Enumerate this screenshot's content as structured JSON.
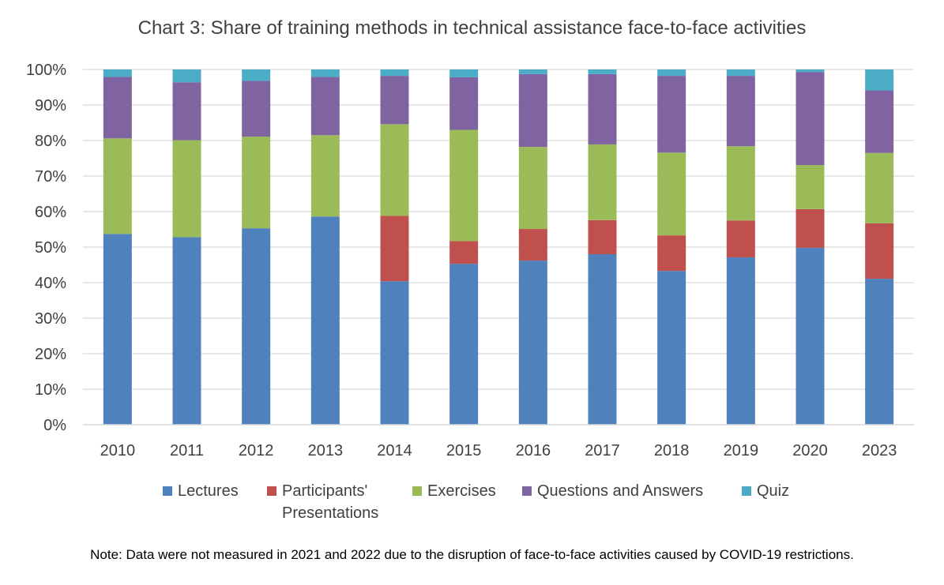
{
  "chart_data": {
    "type": "bar",
    "stacked": true,
    "title": "Chart 3: Share of training methods in technical assistance face-to-face activities",
    "xlabel": "",
    "ylabel": "",
    "ylim": [
      0,
      100
    ],
    "y_ticks": [
      "0%",
      "10%",
      "20%",
      "30%",
      "40%",
      "50%",
      "60%",
      "70%",
      "80%",
      "90%",
      "100%"
    ],
    "y_tick_values": [
      0,
      10,
      20,
      30,
      40,
      50,
      60,
      70,
      80,
      90,
      100
    ],
    "grid": true,
    "legend_position": "bottom",
    "categories": [
      "2010",
      "2011",
      "2012",
      "2013",
      "2014",
      "2015",
      "2016",
      "2017",
      "2018",
      "2019",
      "2020",
      "2023"
    ],
    "series": [
      {
        "name": "Lectures",
        "color": "#4F81BD",
        "values": [
          53.7,
          52.8,
          55.3,
          58.6,
          40.4,
          45.3,
          46.2,
          48.0,
          43.3,
          47.1,
          49.8,
          41.1
        ]
      },
      {
        "name": "Participants'\nPresentations",
        "color": "#C0504D",
        "values": [
          0,
          0,
          0,
          0,
          18.4,
          6.4,
          8.9,
          9.6,
          10.0,
          10.4,
          10.9,
          15.6
        ]
      },
      {
        "name": "Exercises",
        "color": "#9BBB59",
        "values": [
          26.9,
          27.3,
          25.8,
          22.9,
          25.8,
          31.3,
          23.1,
          21.3,
          23.3,
          20.9,
          12.4,
          19.8
        ]
      },
      {
        "name": "Questions and Answers",
        "color": "#8064A2",
        "values": [
          17.3,
          16.3,
          15.7,
          16.4,
          13.6,
          14.8,
          20.5,
          19.8,
          21.6,
          19.8,
          26.2,
          17.6
        ]
      },
      {
        "name": "Quiz",
        "color": "#4BACC6",
        "values": [
          2.1,
          3.6,
          3.2,
          2.1,
          1.8,
          2.2,
          1.3,
          1.3,
          1.8,
          1.8,
          0.7,
          5.9
        ]
      }
    ],
    "note": "Note: Data were not measured in 2021 and 2022 due to the disruption of face-to-face activities caused by COVID-19 restrictions."
  }
}
